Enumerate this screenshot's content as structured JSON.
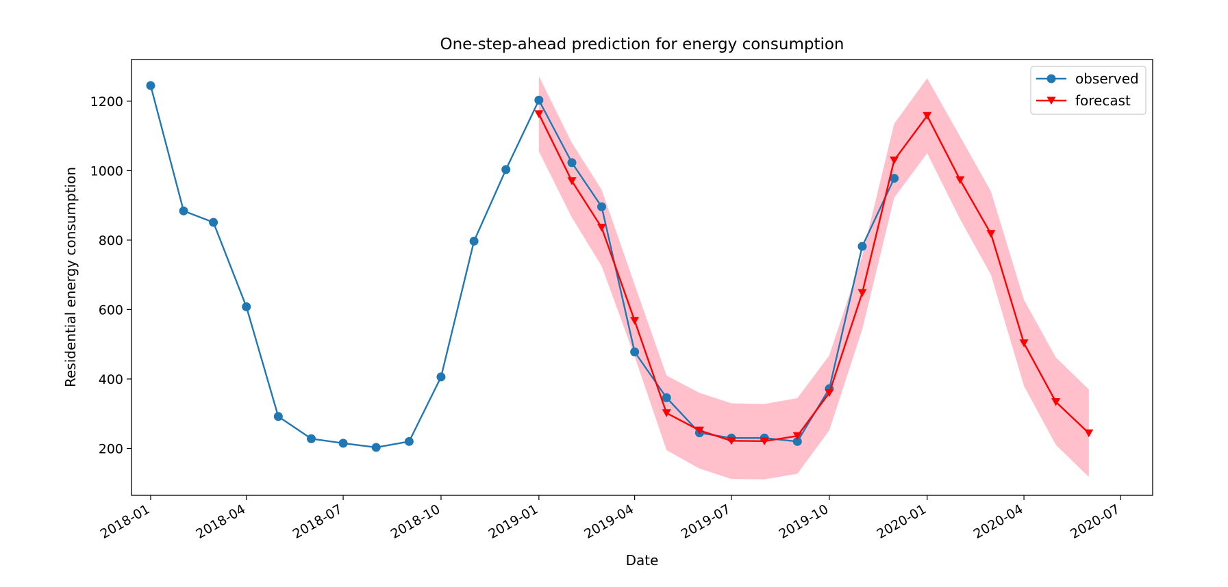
{
  "chart_data": {
    "type": "line",
    "title": "One-step-ahead prediction for energy consumption",
    "xlabel": "Date",
    "ylabel": "Residential energy consumption",
    "x_tick_labels": [
      "2018-01",
      "2018-04",
      "2018-07",
      "2018-10",
      "2019-01",
      "2019-04",
      "2019-07",
      "2019-10",
      "2020-01",
      "2020-04",
      "2020-07"
    ],
    "y_ticks": [
      200,
      400,
      600,
      800,
      1000,
      1200
    ],
    "xlim": [
      "2017-12-14",
      "2020-07-31"
    ],
    "ylim": [
      65,
      1320
    ],
    "grid": false,
    "legend_position": "top-right",
    "series": [
      {
        "name": "observed",
        "color": "#1f77b4",
        "marker": "circle",
        "x": [
          "2018-01-01",
          "2018-02-01",
          "2018-03-01",
          "2018-04-01",
          "2018-05-01",
          "2018-06-01",
          "2018-07-01",
          "2018-08-01",
          "2018-09-01",
          "2018-10-01",
          "2018-11-01",
          "2018-12-01",
          "2019-01-01",
          "2019-02-01",
          "2019-03-01",
          "2019-04-01",
          "2019-05-01",
          "2019-06-01",
          "2019-07-01",
          "2019-08-01",
          "2019-09-01",
          "2019-10-01",
          "2019-11-01",
          "2019-12-01"
        ],
        "values": [
          1245,
          884,
          851,
          608,
          292,
          228,
          215,
          203,
          220,
          406,
          797,
          1003,
          1203,
          1023,
          896,
          478,
          346,
          245,
          230,
          230,
          220,
          372,
          782,
          978
        ]
      },
      {
        "name": "forecast",
        "color": "#ff0000",
        "marker": "triangle-down",
        "x": [
          "2019-01-01",
          "2019-02-01",
          "2019-03-01",
          "2019-04-01",
          "2019-05-01",
          "2019-06-01",
          "2019-07-01",
          "2019-08-01",
          "2019-09-01",
          "2019-10-01",
          "2019-11-01",
          "2019-12-01",
          "2020-01-01",
          "2020-02-01",
          "2020-03-01",
          "2020-04-01",
          "2020-05-01",
          "2020-06-01"
        ],
        "values": [
          1163,
          970,
          836,
          568,
          302,
          252,
          222,
          221,
          236,
          360,
          648,
          1030,
          1158,
          973,
          818,
          503,
          334,
          244
        ],
        "confidence_interval": {
          "color": "#ffc0cb",
          "lower": [
            1055,
            865,
            725,
            465,
            195,
            142,
            112,
            111,
            127,
            252,
            543,
            922,
            1050,
            860,
            700,
            380,
            210,
            118
          ],
          "upper": [
            1272,
            1080,
            945,
            672,
            410,
            360,
            330,
            328,
            345,
            468,
            755,
            1135,
            1266,
            1098,
            940,
            628,
            462,
            370
          ]
        }
      }
    ]
  }
}
